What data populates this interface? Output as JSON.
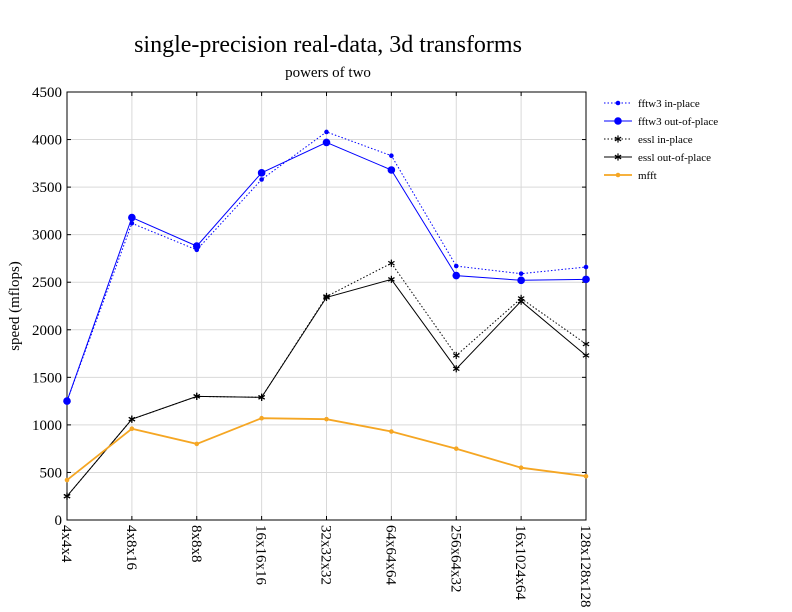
{
  "chart_data": {
    "type": "line",
    "title": "single-precision real-data, 3d transforms",
    "subtitle": "powers of two",
    "xlabel": "",
    "ylabel": "speed (mflops)",
    "ylim": [
      0,
      4500
    ],
    "yticks": [
      0,
      500,
      1000,
      1500,
      2000,
      2500,
      3000,
      3500,
      4000,
      4500
    ],
    "grid": true,
    "legend_position": "right",
    "categories": [
      "4x4x4",
      "4x8x16",
      "8x8x8",
      "16x16x16",
      "32x32x32",
      "64x64x64",
      "256x64x32",
      "16x1024x64",
      "128x128x128"
    ],
    "series": [
      {
        "name": "fftw3 in-place",
        "color": "#0000ff",
        "dash": "dotted",
        "marker": "small-dot",
        "values": [
          1250,
          3120,
          2840,
          3580,
          4080,
          3830,
          2670,
          2590,
          2660
        ]
      },
      {
        "name": "fftw3 out-of-place",
        "color": "#0000ff",
        "dash": "solid",
        "marker": "big-dot",
        "values": [
          1250,
          3180,
          2880,
          3650,
          3970,
          3680,
          2570,
          2520,
          2530
        ]
      },
      {
        "name": "essl in-place",
        "color": "#000000",
        "dash": "dotted",
        "marker": "star",
        "values": [
          250,
          1060,
          1300,
          1290,
          2350,
          2700,
          1730,
          2330,
          1850
        ]
      },
      {
        "name": "essl out-of-place",
        "color": "#000000",
        "dash": "solid",
        "marker": "star",
        "values": [
          250,
          1060,
          1300,
          1290,
          2340,
          2530,
          1590,
          2300,
          1730
        ]
      },
      {
        "name": "mfft",
        "color": "#f5a623",
        "dash": "solid",
        "marker": "small-dot",
        "values": [
          420,
          960,
          800,
          1070,
          1060,
          930,
          750,
          550,
          460
        ]
      }
    ]
  }
}
